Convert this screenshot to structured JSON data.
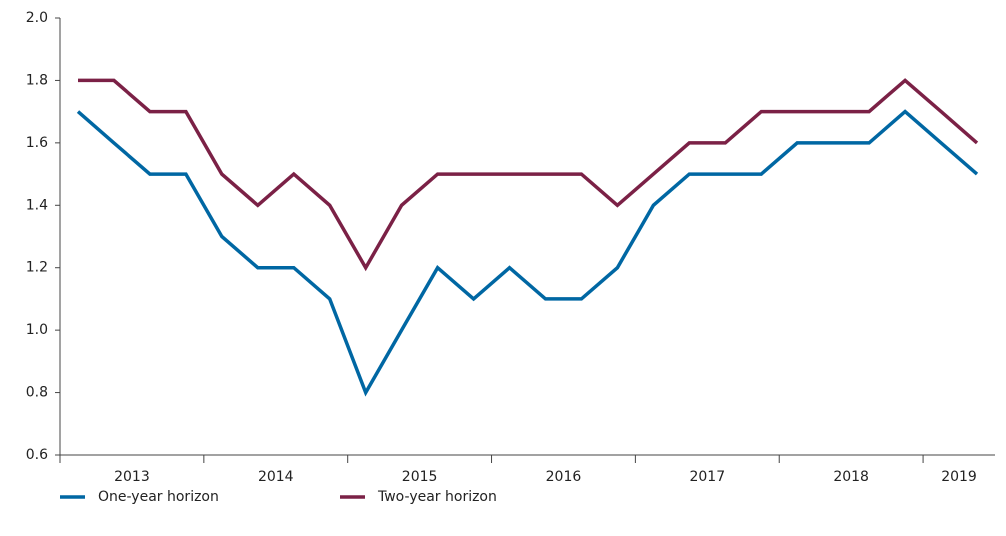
{
  "chart_data": {
    "type": "line",
    "categories": [
      "2013",
      null,
      null,
      null,
      "2014",
      null,
      null,
      null,
      "2015",
      null,
      null,
      null,
      "2016",
      null,
      null,
      null,
      "2017",
      null,
      null,
      null,
      "2018",
      null,
      null,
      null,
      "2019",
      null
    ],
    "series": [
      {
        "name": "One-year horizon",
        "color": "#0067a3",
        "values": [
          1.7,
          1.6,
          1.5,
          1.5,
          1.3,
          1.2,
          1.2,
          1.1,
          0.8,
          1.0,
          1.2,
          1.1,
          1.2,
          1.1,
          1.1,
          1.2,
          1.4,
          1.5,
          1.5,
          1.5,
          1.6,
          1.6,
          1.6,
          1.7,
          1.6,
          1.5
        ]
      },
      {
        "name": "Two-year horizon",
        "color": "#7b2146",
        "values": [
          1.8,
          1.8,
          1.7,
          1.7,
          1.5,
          1.4,
          1.5,
          1.4,
          1.2,
          1.4,
          1.5,
          1.5,
          1.5,
          1.5,
          1.5,
          1.4,
          1.5,
          1.6,
          1.6,
          1.7,
          1.7,
          1.7,
          1.7,
          1.8,
          1.7,
          1.6
        ]
      }
    ],
    "ylim": [
      0.6,
      2.0
    ],
    "yticks": [
      0.6,
      0.8,
      {
        "value": 1,
        "label": "1.0"
      },
      1.2,
      1.4,
      1.6,
      1.8,
      {
        "value": 2,
        "label": "2.0"
      }
    ],
    "grid": false,
    "legend": "bottom"
  }
}
